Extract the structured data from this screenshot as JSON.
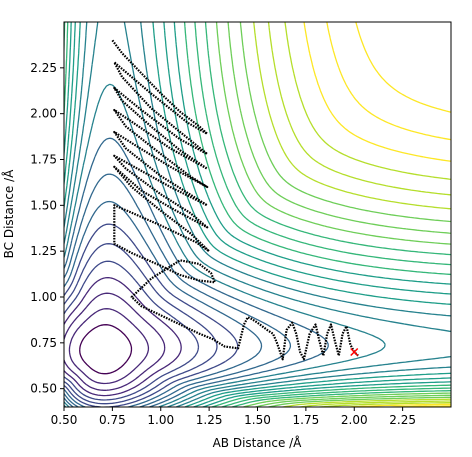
{
  "chart_data": {
    "type": "contour",
    "title": "",
    "xlabel": "AB Distance /Å",
    "ylabel": "BC Distance /Å",
    "xlim": [
      0.5,
      2.5
    ],
    "ylim": [
      0.4,
      2.5
    ],
    "xticks": [
      "0.50",
      "0.75",
      "1.00",
      "1.25",
      "1.50",
      "1.75",
      "2.00",
      "2.25"
    ],
    "yticks": [
      "0.50",
      "0.75",
      "1.00",
      "1.25",
      "1.50",
      "1.75",
      "2.00",
      "2.25"
    ],
    "grid": false,
    "legend": "none",
    "colormap": "viridis",
    "colors": [
      "#440154",
      "#482878",
      "#3e4989",
      "#31688e",
      "#26828e",
      "#1f9e89",
      "#35b779",
      "#6ece58",
      "#b5de2b",
      "#fde725"
    ],
    "trajectory": {
      "name": "",
      "color": "#000000",
      "points": [
        [
          0.75,
          2.4
        ],
        [
          0.8,
          2.33
        ],
        [
          0.9,
          2.22
        ],
        [
          1.0,
          2.11
        ],
        [
          1.1,
          2.01
        ],
        [
          1.2,
          1.93
        ],
        [
          1.24,
          1.89
        ],
        [
          1.14,
          1.95
        ],
        [
          0.95,
          2.11
        ],
        [
          0.76,
          2.28
        ],
        [
          0.8,
          2.2
        ],
        [
          0.95,
          2.03
        ],
        [
          1.1,
          1.9
        ],
        [
          1.24,
          1.78
        ],
        [
          1.1,
          1.86
        ],
        [
          0.9,
          2.02
        ],
        [
          0.76,
          2.14
        ],
        [
          0.8,
          2.07
        ],
        [
          0.95,
          1.93
        ],
        [
          1.1,
          1.8
        ],
        [
          1.24,
          1.7
        ],
        [
          1.05,
          1.81
        ],
        [
          0.9,
          1.92
        ],
        [
          0.76,
          2.02
        ],
        [
          0.82,
          1.93
        ],
        [
          1.0,
          1.78
        ],
        [
          1.15,
          1.66
        ],
        [
          1.24,
          1.6
        ],
        [
          1.05,
          1.71
        ],
        [
          0.88,
          1.82
        ],
        [
          0.76,
          1.9
        ],
        [
          0.82,
          1.81
        ],
        [
          1.0,
          1.66
        ],
        [
          1.15,
          1.56
        ],
        [
          1.24,
          1.5
        ],
        [
          1.05,
          1.6
        ],
        [
          0.88,
          1.7
        ],
        [
          0.76,
          1.77
        ],
        [
          0.82,
          1.7
        ],
        [
          1.0,
          1.56
        ],
        [
          1.15,
          1.46
        ],
        [
          1.24,
          1.38
        ],
        [
          1.08,
          1.47
        ],
        [
          0.9,
          1.58
        ],
        [
          0.76,
          1.71
        ],
        [
          0.85,
          1.6
        ],
        [
          1.0,
          1.47
        ],
        [
          1.15,
          1.35
        ],
        [
          1.25,
          1.25
        ],
        [
          1.18,
          1.3
        ],
        [
          1.0,
          1.39
        ],
        [
          0.85,
          1.46
        ],
        [
          0.76,
          1.5
        ],
        [
          0.76,
          1.29
        ],
        [
          0.85,
          1.24
        ],
        [
          1.0,
          1.17
        ],
        [
          1.1,
          1.12
        ],
        [
          1.2,
          1.09
        ],
        [
          1.28,
          1.08
        ],
        [
          1.26,
          1.13
        ],
        [
          1.2,
          1.18
        ],
        [
          1.1,
          1.2
        ],
        [
          0.95,
          1.1
        ],
        [
          0.85,
          1.0
        ],
        [
          0.9,
          0.95
        ],
        [
          1.0,
          0.9
        ],
        [
          1.1,
          0.85
        ],
        [
          1.2,
          0.8
        ],
        [
          1.27,
          0.77
        ],
        [
          1.33,
          0.73
        ],
        [
          1.4,
          0.72
        ],
        [
          1.43,
          0.85
        ],
        [
          1.45,
          0.89
        ],
        [
          1.47,
          0.88
        ],
        [
          1.5,
          0.86
        ],
        [
          1.55,
          0.82
        ],
        [
          1.58,
          0.8
        ],
        [
          1.6,
          0.75
        ],
        [
          1.63,
          0.66
        ],
        [
          1.65,
          0.82
        ],
        [
          1.68,
          0.86
        ],
        [
          1.7,
          0.8
        ],
        [
          1.72,
          0.7
        ],
        [
          1.74,
          0.66
        ],
        [
          1.77,
          0.8
        ],
        [
          1.8,
          0.85
        ],
        [
          1.82,
          0.76
        ],
        [
          1.84,
          0.68
        ],
        [
          1.86,
          0.8
        ],
        [
          1.88,
          0.85
        ],
        [
          1.9,
          0.76
        ],
        [
          1.92,
          0.68
        ],
        [
          1.94,
          0.8
        ],
        [
          1.96,
          0.84
        ],
        [
          1.98,
          0.74
        ],
        [
          2.0,
          0.7
        ],
        [
          2.02,
          0.68
        ]
      ]
    },
    "marker": {
      "x": 2.0,
      "y": 0.7,
      "color": "#ff0000",
      "symbol": "x"
    }
  }
}
